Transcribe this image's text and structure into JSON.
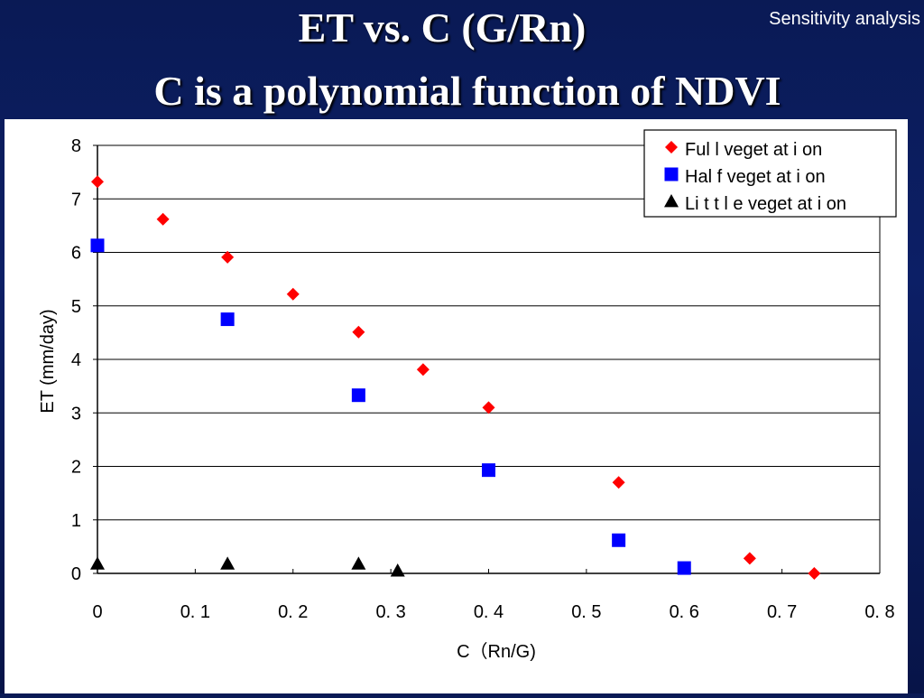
{
  "header": {
    "title_line1": "ET vs. C (G/Rn)",
    "title_line2": "C is a polynomial function of  NDVI",
    "tag": "Sensitivity analysis"
  },
  "chart_data": {
    "type": "scatter",
    "xlabel": "C（Rn/G)",
    "ylabel": "ET (mm/day)",
    "xlim": [
      0,
      0.8
    ],
    "ylim": [
      0,
      8
    ],
    "x_ticks": [
      0,
      0.1,
      0.2,
      0.3,
      0.4,
      0.5,
      0.6,
      0.7,
      0.8
    ],
    "x_tick_labels": [
      "0",
      "0. 1",
      "0. 2",
      "0. 3",
      "0. 4",
      "0. 5",
      "0. 6",
      "0. 7",
      "0. 8"
    ],
    "y_ticks": [
      0,
      1,
      2,
      3,
      4,
      5,
      6,
      7,
      8
    ],
    "y_tick_labels": [
      "0",
      "1",
      "2",
      "3",
      "4",
      "5",
      "6",
      "7",
      "8"
    ],
    "grid": "horizontal",
    "legend_position": "top-right",
    "series": [
      {
        "name": "Ful l  veget at i on",
        "marker": "diamond",
        "color": "#ff0000",
        "points": [
          [
            0,
            7.32
          ],
          [
            0.067,
            6.62
          ],
          [
            0.133,
            5.91
          ],
          [
            0.2,
            5.22
          ],
          [
            0.267,
            4.51
          ],
          [
            0.333,
            3.81
          ],
          [
            0.4,
            3.1
          ],
          [
            0.533,
            1.7
          ],
          [
            0.667,
            0.28
          ],
          [
            0.733,
            0.0
          ]
        ]
      },
      {
        "name": "Hal f  veget at i on",
        "marker": "square",
        "color": "#0000ff",
        "points": [
          [
            0,
            6.13
          ],
          [
            0.133,
            4.75
          ],
          [
            0.267,
            3.33
          ],
          [
            0.4,
            1.93
          ],
          [
            0.533,
            0.62
          ],
          [
            0.6,
            0.1
          ]
        ]
      },
      {
        "name": "Li t t l e  veget at i on",
        "marker": "triangle",
        "color": "#000000",
        "points": [
          [
            0,
            0.18
          ],
          [
            0.133,
            0.18
          ],
          [
            0.267,
            0.18
          ],
          [
            0.307,
            0.05
          ]
        ]
      }
    ]
  }
}
